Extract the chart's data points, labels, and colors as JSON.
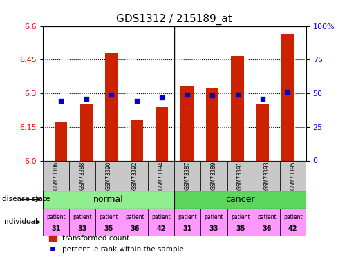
{
  "title": "GDS1312 / 215189_at",
  "samples": [
    "GSM73386",
    "GSM73388",
    "GSM73390",
    "GSM73392",
    "GSM73394",
    "GSM73387",
    "GSM73389",
    "GSM73391",
    "GSM73393",
    "GSM73395"
  ],
  "bar_values": [
    6.17,
    6.25,
    6.48,
    6.18,
    6.24,
    6.33,
    6.325,
    6.465,
    6.25,
    6.565
  ],
  "blue_values": [
    6.265,
    6.275,
    6.295,
    6.265,
    6.28,
    6.295,
    6.29,
    6.295,
    6.275,
    6.305
  ],
  "bar_base": 6.0,
  "ylim": [
    6.0,
    6.6
  ],
  "yticks_left": [
    6.0,
    6.15,
    6.3,
    6.45,
    6.6
  ],
  "yticks_right": [
    0,
    25,
    50,
    75,
    100
  ],
  "yticks_right_labels": [
    "0",
    "25",
    "50",
    "75",
    "100%"
  ],
  "individuals": [
    "patient\n31",
    "patient\n33",
    "patient\n35",
    "patient\n36",
    "patient\n42",
    "patient\n31",
    "patient\n33",
    "patient\n35",
    "patient\n36",
    "patient\n42"
  ],
  "individual_color": "#FF99FF",
  "bar_color": "#CC2200",
  "blue_color": "#0000CC",
  "sample_bg": "#C8C8C8",
  "normal_color": "#90EE90",
  "cancer_color": "#5CD65C",
  "legend_red_label": "transformed count",
  "legend_blue_label": "percentile rank within the sample"
}
